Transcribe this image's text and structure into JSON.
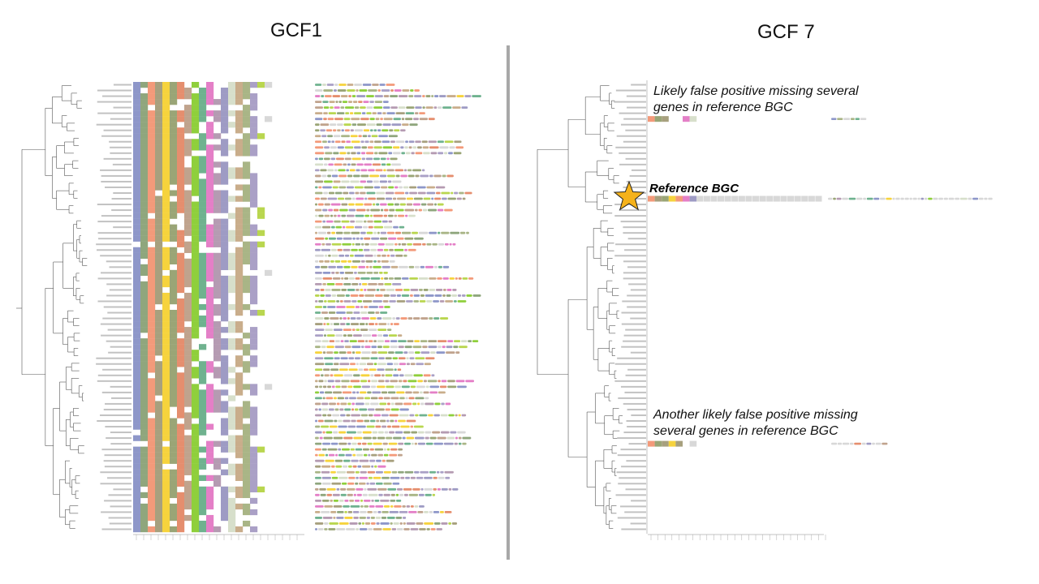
{
  "figure": {
    "left_title": "GCF1",
    "right_title": "GCF 7",
    "annotation_top": "Likely false positive missing several genes in reference BGC",
    "annotation_reference": "Reference BGC",
    "annotation_bottom": "Another likely false positive missing several genes in reference BGC"
  },
  "colors": {
    "divider": "#a8a8a8",
    "star_fill": "#f5b21b",
    "star_stroke": "#222222",
    "tree_line": "#555555",
    "gene_palette": [
      "#8e97c9",
      "#8fa67d",
      "#f39a7a",
      "#a7a07e",
      "#f6d33d",
      "#9aa576",
      "#e58e6e",
      "#c0a38d",
      "#8fcf3c",
      "#6fb28f",
      "#e47fc7",
      "#b59bb2",
      "#9e9bc4",
      "#d7dfcb",
      "#c9ad8b",
      "#a9b586",
      "#aaa0c6",
      "#b9d64f",
      "#d8d8d8"
    ]
  },
  "gcf1": {
    "rows": 79,
    "pattern_note": "presence-absence matrix of gene families",
    "columns": 19
  },
  "gcf7": {
    "rows": 79,
    "filled_rows": [
      "row-7",
      "row-20",
      "row-64"
    ],
    "reference_row": "row-20"
  }
}
